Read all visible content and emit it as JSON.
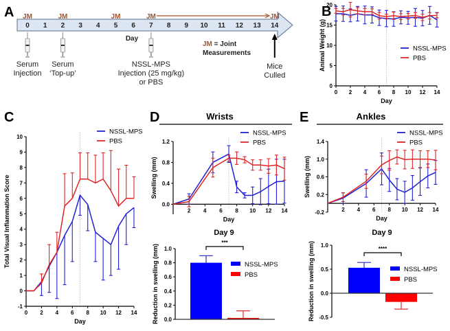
{
  "panels": {
    "A": {
      "letter": "A",
      "timeline_days": [
        "0",
        "1",
        "2",
        "3",
        "4",
        "5",
        "6",
        "7",
        "8",
        "9",
        "10",
        "11",
        "12",
        "13",
        "14"
      ],
      "day_label": "Day",
      "jm_days": [
        0,
        2,
        5,
        7,
        14
      ],
      "jm_label": "JM",
      "jm_key_prefix": "JM",
      "jm_key_eq": " = Joint",
      "jm_key_line2": "Measurements",
      "events": [
        {
          "day": 0,
          "line1": "Serum",
          "line2": "Injection",
          "line3": "",
          "icon": "syringe-icon"
        },
        {
          "day": 2,
          "line1": "Serum",
          "line2": "‘Top-up’",
          "line3": "",
          "icon": "syringe-icon"
        },
        {
          "day": 7,
          "line1": "NSSL-MPS",
          "line2": "Injection (25 mg/kg)",
          "line3": "or PBS",
          "icon": "syringe-icon"
        },
        {
          "day": 14,
          "line1": "Mice",
          "line2": "Culled",
          "line3": "",
          "icon": "arrow-up-icon"
        }
      ],
      "colors": {
        "bar_fill": "#dce6f2",
        "bar_stroke": "#5a6f8e",
        "jm": "#a0522d"
      }
    },
    "B": {
      "letter": "B"
    },
    "C": {
      "letter": "C"
    },
    "D": {
      "letter": "D",
      "group_title": "Wrists",
      "bar_title": "Day 9",
      "significance": "***"
    },
    "E": {
      "letter": "E",
      "group_title": "Ankles",
      "bar_title": "Day 9",
      "significance": "****"
    }
  },
  "colors": {
    "NSSL-MPS": "#1f1fd6",
    "PBS": "#e02424",
    "bar_blue": "#0000ff",
    "bar_red": "#ff0000"
  },
  "chart_data": [
    {
      "id": "B",
      "type": "line",
      "title": "",
      "xlabel": "Day",
      "ylabel": "Animal Weight (g)",
      "xlim": [
        0,
        14
      ],
      "ylim": [
        0,
        20
      ],
      "xticks": [
        0,
        2,
        4,
        6,
        8,
        10,
        12,
        14
      ],
      "yticks": [
        0,
        5,
        10,
        15,
        20
      ],
      "vline": 7,
      "legend": "center-right",
      "x": [
        0,
        1,
        2,
        3,
        4,
        5,
        6,
        7,
        8,
        9,
        10,
        11,
        12,
        13,
        14
      ],
      "series": [
        {
          "name": "NSSL-MPS",
          "values": [
            17.8,
            17.8,
            17.4,
            17.8,
            17.5,
            17.5,
            16.8,
            16.6,
            16.5,
            16.9,
            16.8,
            16.9,
            16.7,
            17.4,
            16.3
          ],
          "err": [
            1.8,
            1.9,
            1.6,
            1.8,
            2.2,
            2.0,
            1.9,
            2.0,
            1.8,
            1.6,
            1.6,
            2.2,
            1.9,
            2.2,
            1.8
          ]
        },
        {
          "name": "PBS",
          "values": [
            18.5,
            18.3,
            18.8,
            18.5,
            18.3,
            18.3,
            17.3,
            17.1,
            17.3,
            17.1,
            17.2,
            17.4,
            16.9,
            17.3,
            17.4
          ],
          "err": [
            0.6,
            0.8,
            1.8,
            0.8,
            0.8,
            0.7,
            0.8,
            0.6,
            0.9,
            0.7,
            0.7,
            0.7,
            0.8,
            0.8,
            0.6
          ]
        }
      ]
    },
    {
      "id": "C",
      "type": "line",
      "title": "",
      "xlabel": "Day",
      "ylabel": "Total Visual Inflammation Score",
      "xlim": [
        0,
        14
      ],
      "ylim": [
        -1,
        10
      ],
      "xticks": [
        0,
        2,
        4,
        6,
        8,
        10,
        12,
        14
      ],
      "yticks": [
        -1,
        0,
        1,
        2,
        3,
        4,
        5,
        6,
        7,
        8,
        9,
        10
      ],
      "vline": 7,
      "legend": "top-right",
      "x": [
        0,
        1,
        2,
        3,
        4,
        5,
        6,
        7,
        8,
        9,
        10,
        11,
        12,
        13,
        14
      ],
      "series": [
        {
          "name": "NSSL-MPS",
          "values": [
            0,
            0,
            0.6,
            1.6,
            2.5,
            3.6,
            4.5,
            6.2,
            5.6,
            3.8,
            3.4,
            3.0,
            4.2,
            5.0,
            5.4
          ],
          "err_down": [
            0,
            0,
            0.9,
            1.7,
            3.0,
            3.2,
            2.6,
            1.3,
            1.7,
            1.9,
            2.7,
            2.0,
            2.8,
            2.0,
            1.3
          ],
          "err_up": [
            0,
            0,
            0,
            0,
            0,
            0,
            0,
            0,
            0,
            0,
            0,
            0,
            0,
            0,
            0
          ]
        },
        {
          "name": "PBS",
          "values": [
            0,
            0,
            0.5,
            1.7,
            2.5,
            5.5,
            6.0,
            7.25,
            7.25,
            7.0,
            7.25,
            6.5,
            5.5,
            6.0,
            6.0
          ],
          "err_up": [
            0,
            0,
            0.6,
            1.3,
            1.3,
            2.1,
            1.65,
            1.7,
            1.7,
            1.8,
            1.7,
            2.6,
            2.4,
            2.15,
            1.4
          ],
          "err_down": [
            0,
            0,
            0,
            0,
            0,
            0,
            0,
            0,
            0,
            0,
            0,
            0,
            0,
            0,
            0
          ]
        }
      ]
    },
    {
      "id": "D-line",
      "type": "line",
      "title": "Wrists",
      "xlabel": "Day",
      "ylabel": "Swelling (mm)",
      "xlim": [
        0,
        14
      ],
      "ylim": [
        -0.1,
        1.2
      ],
      "xticks": [
        2,
        4,
        6,
        8,
        10,
        12,
        14
      ],
      "yticks": [
        0.0,
        0.4,
        0.8,
        1.2
      ],
      "ytick_labels": [
        "0.0",
        "0.4",
        "0.8",
        "1.2"
      ],
      "vline": 7,
      "legend": "top-right",
      "x": [
        0,
        2,
        5,
        7,
        8,
        9,
        10,
        11,
        12,
        13,
        14
      ],
      "series": [
        {
          "name": "NSSL-MPS",
          "values": [
            0,
            0.1,
            0.8,
            0.96,
            0.33,
            0.17,
            0.17,
            0.24,
            0.34,
            0.43,
            0.44
          ],
          "err": [
            0,
            0.1,
            0.2,
            0.16,
            0.11,
            0.05,
            0.16,
            0.25,
            0.33,
            0.43,
            0.42
          ]
        },
        {
          "name": "PBS",
          "values": [
            0,
            0.05,
            0.7,
            0.88,
            0.88,
            0.85,
            0.75,
            0.75,
            0.73,
            0.75,
            0.68
          ],
          "err": [
            0,
            0.1,
            0.18,
            0.06,
            0.12,
            0.06,
            0.1,
            0.1,
            0.14,
            0.19,
            0.22
          ]
        }
      ]
    },
    {
      "id": "D-bar",
      "type": "bar",
      "title": "Day 9",
      "xlabel": "",
      "ylabel": "Reduction in swelling (mm)",
      "ylim": [
        0,
        1.0
      ],
      "yticks": [
        0.0,
        0.2,
        0.4,
        0.6,
        0.8,
        1.0
      ],
      "ytick_labels": [
        "0.0",
        "0.2",
        "0.4",
        "0.6",
        "0.8",
        "1.0"
      ],
      "legend": "right",
      "categories": [
        "NSSL-MPS",
        "PBS"
      ],
      "values": [
        0.8,
        0.02
      ],
      "err": [
        0.1,
        0.1
      ],
      "annotation": "***"
    },
    {
      "id": "E-line",
      "type": "line",
      "title": "Ankles",
      "xlabel": "Day",
      "ylabel": "Swelling (mm)",
      "xlim": [
        0,
        14
      ],
      "ylim": [
        -0.2,
        1.4
      ],
      "xticks": [
        2,
        4,
        6,
        8,
        10,
        12,
        14
      ],
      "yticks": [
        -0.2,
        0.2,
        0.6,
        1.0,
        1.4
      ],
      "ytick_labels": [
        "-0.2",
        "0.2",
        "0.6",
        "1.0",
        "1.4"
      ],
      "vline": 7,
      "legend": "top-right",
      "x": [
        0,
        2,
        5,
        7,
        8,
        9,
        10,
        11,
        12,
        13,
        14
      ],
      "series": [
        {
          "name": "NSSL-MPS",
          "values": [
            0,
            0.12,
            0.45,
            0.78,
            0.53,
            0.32,
            0.25,
            0.35,
            0.49,
            0.62,
            0.7
          ],
          "err": [
            0,
            0.12,
            0.31,
            0.36,
            0.26,
            0.24,
            0.25,
            0.28,
            0.31,
            0.27,
            0.27
          ]
        },
        {
          "name": "PBS",
          "values": [
            0,
            0.14,
            0.5,
            0.87,
            0.97,
            1.05,
            0.99,
            1.0,
            1.0,
            1.0,
            0.98
          ],
          "err": [
            0,
            0.1,
            0.16,
            0.2,
            0.22,
            0.16,
            0.21,
            0.21,
            0.19,
            0.19,
            0.22
          ]
        }
      ]
    },
    {
      "id": "E-bar",
      "type": "bar",
      "title": "Day 9",
      "xlabel": "",
      "ylabel": "Reduction in swelling (mm)",
      "ylim": [
        -0.5,
        1.0
      ],
      "yticks": [
        -0.5,
        0.0,
        0.5,
        1.0
      ],
      "ytick_labels": [
        "-0.5",
        "0.0",
        "0.5",
        "1.0"
      ],
      "legend": "right",
      "categories": [
        "NSSL-MPS",
        "PBS"
      ],
      "values": [
        0.53,
        -0.18
      ],
      "err": [
        0.11,
        0.15
      ],
      "annotation": "****"
    }
  ]
}
